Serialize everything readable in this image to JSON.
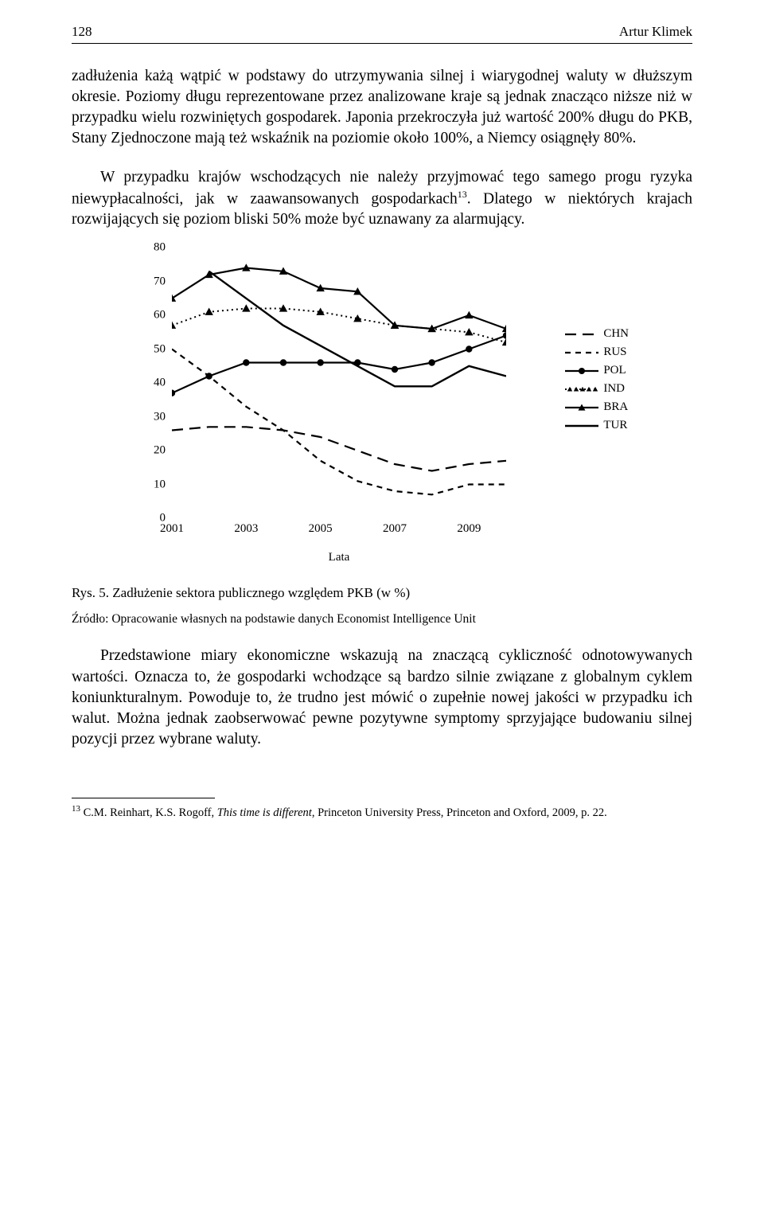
{
  "header": {
    "page": "128",
    "author": "Artur Klimek"
  },
  "para1": "zadłużenia każą wątpić w podstawy do utrzymywania silnej i wiarygodnej waluty w dłuższym okresie. Poziomy długu reprezentowane przez analizowane kraje są jednak znacząco niższe niż w przypadku wielu rozwiniętych gospodarek. Japonia przekroczyła już wartość 200% długu do PKB, Stany Zjednoczone mają też wskaźnik na poziomie około 100%, a Niemcy osiągnęły 80%.",
  "para2a": "W przypadku krajów wschodzących nie należy przyjmować tego samego progu ryzyka niewypłacalności, jak w zaawansowanych gospodarkach",
  "para2b": ". Dlatego w niektórych krajach rozwijających się poziom bliski 50% może być uznawany za alarmujący.",
  "sup13": "13",
  "para3": "Przedstawione miary ekonomiczne wskazują na znaczącą cykliczność odnotowywanych wartości. Oznacza to, że gospodarki wchodzące są bardzo silnie związane z globalnym cyklem koniunkturalnym. Powoduje to, że trudno jest mówić o zupełnie nowej jakości w przypadku ich walut. Można jednak zaobserwować pewne pozytywne symptomy sprzyjające budowaniu silnej pozycji przez wybrane waluty.",
  "caption": "Rys. 5. Zadłużenie sektora publicznego względem PKB (w %)",
  "source": "Źródło: Opracowanie własnych na podstawie danych Economist Intelligence Unit",
  "footnote": {
    "num": "13",
    "text_a": " C.M. Reinhart, K.S. Rogoff, ",
    "text_i": "This time is different",
    "text_b": ", Princeton University Press, Princeton and Oxford, 2009, p. 22."
  },
  "chart": {
    "type": "line",
    "background_color": "#ffffff",
    "stroke_color": "#000000",
    "ylim": [
      0,
      80
    ],
    "ytick_step": 10,
    "yticks": [
      0,
      10,
      20,
      30,
      40,
      50,
      60,
      70,
      80
    ],
    "xlabels": [
      "2001",
      "2003",
      "2005",
      "2007",
      "2009"
    ],
    "x_title": "Lata",
    "x_positions": [
      2001,
      2003,
      2005,
      2007,
      2009
    ],
    "xrange": [
      2001,
      2010
    ],
    "label_fontsize": 15,
    "series": {
      "CHN": {
        "label": "CHN",
        "style": "long-dash",
        "marker": "none",
        "stroke_width": 2.2,
        "x": [
          2001,
          2002,
          2003,
          2004,
          2005,
          2006,
          2007,
          2008,
          2009,
          2010
        ],
        "y": [
          26,
          27,
          27,
          26,
          24,
          20,
          16,
          14,
          16,
          17
        ]
      },
      "RUS": {
        "label": "RUS",
        "style": "short-dash",
        "marker": "none",
        "stroke_width": 2.2,
        "x": [
          2001,
          2002,
          2003,
          2004,
          2005,
          2006,
          2007,
          2008,
          2009,
          2010
        ],
        "y": [
          50,
          42,
          33,
          26,
          17,
          11,
          8,
          7,
          10,
          10
        ]
      },
      "POL": {
        "label": "POL",
        "style": "solid",
        "marker": "circle",
        "stroke_width": 2.2,
        "x": [
          2001,
          2002,
          2003,
          2004,
          2005,
          2006,
          2007,
          2008,
          2009,
          2010
        ],
        "y": [
          37,
          42,
          46,
          46,
          46,
          46,
          44,
          46,
          50,
          54
        ]
      },
      "IND": {
        "label": "IND",
        "style": "dotted",
        "marker": "triangle",
        "stroke_width": 2.0,
        "x": [
          2001,
          2002,
          2003,
          2004,
          2005,
          2006,
          2007,
          2008,
          2009,
          2010
        ],
        "y": [
          57,
          61,
          62,
          62,
          61,
          59,
          57,
          56,
          55,
          52
        ]
      },
      "BRA": {
        "label": "BRA",
        "style": "solid",
        "marker": "triangle",
        "stroke_width": 2.2,
        "x": [
          2001,
          2002,
          2003,
          2004,
          2005,
          2006,
          2007,
          2008,
          2009,
          2010
        ],
        "y": [
          65,
          72,
          74,
          73,
          68,
          67,
          57,
          56,
          60,
          56
        ]
      },
      "TUR": {
        "label": "TUR",
        "style": "solid",
        "marker": "none",
        "stroke_width": 2.4,
        "x": [
          2001,
          2002,
          2003,
          2004,
          2005,
          2006,
          2007,
          2008,
          2009,
          2010
        ],
        "y": [
          null,
          73,
          65,
          57,
          51,
          45,
          39,
          39,
          45,
          42
        ]
      }
    },
    "legend_order": [
      "CHN",
      "RUS",
      "POL",
      "IND",
      "BRA",
      "TUR"
    ]
  }
}
